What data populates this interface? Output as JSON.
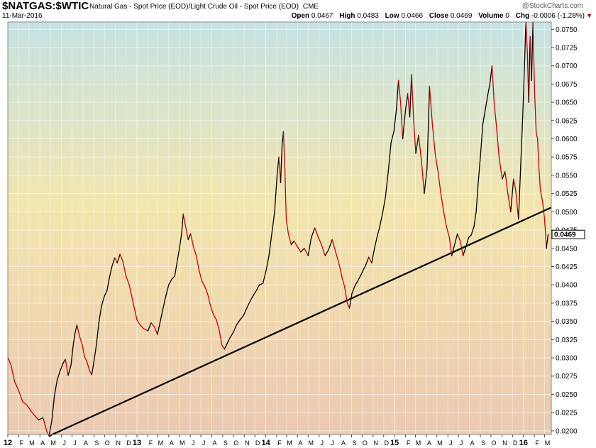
{
  "header": {
    "symbol": "$NATGAS:$WTIC",
    "description": "Natural Gas - Spot Price (EOD)/Light Crude Oil - Spot Price (EOD)",
    "exchange": "CME",
    "date": "11-Mar-2016",
    "credit": "@StockCharts.com",
    "open_label": "Open",
    "open": "0.0467",
    "high_label": "High",
    "high": "0.0483",
    "low_label": "Low",
    "low": "0.0466",
    "close_label": "Close",
    "close": "0.0469",
    "volume_label": "Volume",
    "volume": "0",
    "chg_label": "Chg",
    "chg": "-0.0006 (-1.28%)",
    "caret": "▼"
  },
  "colors": {
    "price_up": "#000000",
    "price_down": "#cc0000",
    "trendline": "#000000",
    "bg_top": "#c5e3e3",
    "bg_mid": "#f3e5ad",
    "bg_bottom": "#ecc9b1"
  },
  "chart_data": {
    "type": "line",
    "title": "$NATGAS:$WTIC",
    "y_axis_position": "right",
    "ylim": [
      0.0195,
      0.076
    ],
    "yticks": [
      "0.0200",
      "0.0225",
      "0.0250",
      "0.0275",
      "0.0300",
      "0.0325",
      "0.0350",
      "0.0375",
      "0.0400",
      "0.0425",
      "0.0450",
      "0.0475",
      "0.0500",
      "0.0525",
      "0.0550",
      "0.0575",
      "0.0600",
      "0.0625",
      "0.0650",
      "0.0675",
      "0.0700",
      "0.0725",
      "0.0750"
    ],
    "x_range": [
      "2012-01-01",
      "2016-03-20"
    ],
    "xticks": [
      {
        "date": "2012-01-01",
        "label": "12",
        "year": true
      },
      {
        "date": "2012-02-01",
        "label": "F"
      },
      {
        "date": "2012-03-01",
        "label": "M"
      },
      {
        "date": "2012-04-01",
        "label": "A"
      },
      {
        "date": "2012-05-01",
        "label": "M"
      },
      {
        "date": "2012-06-01",
        "label": "J"
      },
      {
        "date": "2012-07-01",
        "label": "J"
      },
      {
        "date": "2012-08-01",
        "label": "A"
      },
      {
        "date": "2012-09-01",
        "label": "S"
      },
      {
        "date": "2012-10-01",
        "label": "O"
      },
      {
        "date": "2012-11-01",
        "label": "N"
      },
      {
        "date": "2012-12-01",
        "label": "D"
      },
      {
        "date": "2013-01-01",
        "label": "13",
        "year": true
      },
      {
        "date": "2013-02-01",
        "label": "F"
      },
      {
        "date": "2013-03-01",
        "label": "M"
      },
      {
        "date": "2013-04-01",
        "label": "A"
      },
      {
        "date": "2013-05-01",
        "label": "M"
      },
      {
        "date": "2013-06-01",
        "label": "J"
      },
      {
        "date": "2013-07-01",
        "label": "J"
      },
      {
        "date": "2013-08-01",
        "label": "A"
      },
      {
        "date": "2013-09-01",
        "label": "S"
      },
      {
        "date": "2013-10-01",
        "label": "O"
      },
      {
        "date": "2013-11-01",
        "label": "N"
      },
      {
        "date": "2013-12-01",
        "label": "D"
      },
      {
        "date": "2014-01-01",
        "label": "14",
        "year": true
      },
      {
        "date": "2014-02-01",
        "label": "F"
      },
      {
        "date": "2014-03-01",
        "label": "M"
      },
      {
        "date": "2014-04-01",
        "label": "A"
      },
      {
        "date": "2014-05-01",
        "label": "M"
      },
      {
        "date": "2014-06-01",
        "label": "J"
      },
      {
        "date": "2014-07-01",
        "label": "J"
      },
      {
        "date": "2014-08-01",
        "label": "A"
      },
      {
        "date": "2014-09-01",
        "label": "S"
      },
      {
        "date": "2014-10-01",
        "label": "O"
      },
      {
        "date": "2014-11-01",
        "label": "N"
      },
      {
        "date": "2014-12-01",
        "label": "D"
      },
      {
        "date": "2015-01-01",
        "label": "15",
        "year": true
      },
      {
        "date": "2015-02-01",
        "label": "F"
      },
      {
        "date": "2015-03-01",
        "label": "M"
      },
      {
        "date": "2015-04-01",
        "label": "A"
      },
      {
        "date": "2015-05-01",
        "label": "M"
      },
      {
        "date": "2015-06-01",
        "label": "J"
      },
      {
        "date": "2015-07-01",
        "label": "J"
      },
      {
        "date": "2015-08-01",
        "label": "A"
      },
      {
        "date": "2015-09-01",
        "label": "S"
      },
      {
        "date": "2015-10-01",
        "label": "O"
      },
      {
        "date": "2015-11-01",
        "label": "N"
      },
      {
        "date": "2015-12-01",
        "label": "D"
      },
      {
        "date": "2016-01-01",
        "label": "16",
        "year": true
      },
      {
        "date": "2016-02-01",
        "label": "F"
      },
      {
        "date": "2016-03-01",
        "label": "M"
      }
    ],
    "grid": true,
    "last_value_label": "0.0469",
    "series": [
      {
        "values": [
          [
            "2012-01-01",
            0.0301
          ],
          [
            "2012-01-10",
            0.029
          ],
          [
            "2012-01-20",
            0.0268
          ],
          [
            "2012-02-01",
            0.0255
          ],
          [
            "2012-02-12",
            0.024
          ],
          [
            "2012-02-25",
            0.0235
          ],
          [
            "2012-03-05",
            0.0228
          ],
          [
            "2012-03-15",
            0.0222
          ],
          [
            "2012-03-28",
            0.0215
          ],
          [
            "2012-04-10",
            0.0218
          ],
          [
            "2012-04-20",
            0.02
          ],
          [
            "2012-04-27",
            0.0193
          ],
          [
            "2012-05-05",
            0.0215
          ],
          [
            "2012-05-12",
            0.0248
          ],
          [
            "2012-05-20",
            0.027
          ],
          [
            "2012-05-28",
            0.0282
          ],
          [
            "2012-06-05",
            0.0292
          ],
          [
            "2012-06-12",
            0.0298
          ],
          [
            "2012-06-20",
            0.0276
          ],
          [
            "2012-06-28",
            0.029
          ],
          [
            "2012-07-05",
            0.032
          ],
          [
            "2012-07-10",
            0.0335
          ],
          [
            "2012-07-15",
            0.0345
          ],
          [
            "2012-07-22",
            0.033
          ],
          [
            "2012-07-30",
            0.0318
          ],
          [
            "2012-08-05",
            0.0302
          ],
          [
            "2012-08-12",
            0.0295
          ],
          [
            "2012-08-20",
            0.0282
          ],
          [
            "2012-08-26",
            0.0277
          ],
          [
            "2012-09-01",
            0.0295
          ],
          [
            "2012-09-08",
            0.0318
          ],
          [
            "2012-09-15",
            0.0348
          ],
          [
            "2012-09-22",
            0.037
          ],
          [
            "2012-10-01",
            0.0385
          ],
          [
            "2012-10-08",
            0.0392
          ],
          [
            "2012-10-15",
            0.041
          ],
          [
            "2012-10-22",
            0.0425
          ],
          [
            "2012-10-30",
            0.0437
          ],
          [
            "2012-11-06",
            0.043
          ],
          [
            "2012-11-14",
            0.0442
          ],
          [
            "2012-11-22",
            0.0432
          ],
          [
            "2012-12-01",
            0.0412
          ],
          [
            "2012-12-10",
            0.04
          ],
          [
            "2012-12-20",
            0.0378
          ],
          [
            "2013-01-01",
            0.0352
          ],
          [
            "2013-01-10",
            0.0345
          ],
          [
            "2013-01-20",
            0.034
          ],
          [
            "2013-02-01",
            0.0337
          ],
          [
            "2013-02-10",
            0.0348
          ],
          [
            "2013-02-20",
            0.0342
          ],
          [
            "2013-02-28",
            0.0332
          ],
          [
            "2013-03-08",
            0.035
          ],
          [
            "2013-03-16",
            0.0368
          ],
          [
            "2013-03-24",
            0.0385
          ],
          [
            "2013-04-01",
            0.04
          ],
          [
            "2013-04-10",
            0.0408
          ],
          [
            "2013-04-18",
            0.0412
          ],
          [
            "2013-04-26",
            0.0435
          ],
          [
            "2013-05-02",
            0.0452
          ],
          [
            "2013-05-08",
            0.0472
          ],
          [
            "2013-05-12",
            0.0497
          ],
          [
            "2013-05-18",
            0.0482
          ],
          [
            "2013-05-26",
            0.0462
          ],
          [
            "2013-06-02",
            0.047
          ],
          [
            "2013-06-10",
            0.0452
          ],
          [
            "2013-06-18",
            0.044
          ],
          [
            "2013-06-26",
            0.042
          ],
          [
            "2013-07-04",
            0.0405
          ],
          [
            "2013-07-12",
            0.0398
          ],
          [
            "2013-07-20",
            0.0388
          ],
          [
            "2013-07-28",
            0.0372
          ],
          [
            "2013-08-05",
            0.036
          ],
          [
            "2013-08-14",
            0.0352
          ],
          [
            "2013-08-22",
            0.0338
          ],
          [
            "2013-08-30",
            0.0317
          ],
          [
            "2013-09-06",
            0.0312
          ],
          [
            "2013-09-14",
            0.032
          ],
          [
            "2013-09-22",
            0.0328
          ],
          [
            "2013-10-01",
            0.0335
          ],
          [
            "2013-10-10",
            0.0345
          ],
          [
            "2013-10-20",
            0.0352
          ],
          [
            "2013-10-30",
            0.0358
          ],
          [
            "2013-11-08",
            0.0368
          ],
          [
            "2013-11-18",
            0.0378
          ],
          [
            "2013-11-26",
            0.0385
          ],
          [
            "2013-12-05",
            0.0392
          ],
          [
            "2013-12-14",
            0.04
          ],
          [
            "2013-12-24",
            0.0402
          ],
          [
            "2014-01-02",
            0.042
          ],
          [
            "2014-01-10",
            0.044
          ],
          [
            "2014-01-18",
            0.047
          ],
          [
            "2014-01-26",
            0.05
          ],
          [
            "2014-02-02",
            0.055
          ],
          [
            "2014-02-07",
            0.0575
          ],
          [
            "2014-02-12",
            0.054
          ],
          [
            "2014-02-16",
            0.059
          ],
          [
            "2014-02-20",
            0.061
          ],
          [
            "2014-02-24",
            0.056
          ],
          [
            "2014-02-28",
            0.049
          ],
          [
            "2014-03-06",
            0.047
          ],
          [
            "2014-03-14",
            0.0455
          ],
          [
            "2014-03-22",
            0.046
          ],
          [
            "2014-04-01",
            0.0452
          ],
          [
            "2014-04-10",
            0.0445
          ],
          [
            "2014-04-20",
            0.045
          ],
          [
            "2014-05-01",
            0.044
          ],
          [
            "2014-05-10",
            0.0465
          ],
          [
            "2014-05-20",
            0.0478
          ],
          [
            "2014-05-30",
            0.0465
          ],
          [
            "2014-06-08",
            0.0455
          ],
          [
            "2014-06-18",
            0.044
          ],
          [
            "2014-06-28",
            0.0448
          ],
          [
            "2014-07-08",
            0.0462
          ],
          [
            "2014-07-18",
            0.0445
          ],
          [
            "2014-07-28",
            0.0428
          ],
          [
            "2014-08-05",
            0.041
          ],
          [
            "2014-08-12",
            0.0398
          ],
          [
            "2014-08-20",
            0.0375
          ],
          [
            "2014-08-26",
            0.0368
          ],
          [
            "2014-09-02",
            0.0388
          ],
          [
            "2014-09-10",
            0.0398
          ],
          [
            "2014-09-18",
            0.0405
          ],
          [
            "2014-09-26",
            0.0412
          ],
          [
            "2014-10-04",
            0.042
          ],
          [
            "2014-10-12",
            0.0428
          ],
          [
            "2014-10-20",
            0.0438
          ],
          [
            "2014-10-28",
            0.043
          ],
          [
            "2014-11-05",
            0.045
          ],
          [
            "2014-11-12",
            0.0465
          ],
          [
            "2014-11-20",
            0.048
          ],
          [
            "2014-11-28",
            0.0498
          ],
          [
            "2014-12-06",
            0.052
          ],
          [
            "2014-12-14",
            0.0555
          ],
          [
            "2014-12-22",
            0.0595
          ],
          [
            "2014-12-30",
            0.061
          ],
          [
            "2015-01-06",
            0.064
          ],
          [
            "2015-01-12",
            0.068
          ],
          [
            "2015-01-18",
            0.065
          ],
          [
            "2015-01-24",
            0.06
          ],
          [
            "2015-02-01",
            0.064
          ],
          [
            "2015-02-07",
            0.0662
          ],
          [
            "2015-02-13",
            0.063
          ],
          [
            "2015-02-18",
            0.0688
          ],
          [
            "2015-02-24",
            0.0625
          ],
          [
            "2015-03-02",
            0.058
          ],
          [
            "2015-03-10",
            0.0605
          ],
          [
            "2015-03-18",
            0.057
          ],
          [
            "2015-03-26",
            0.0525
          ],
          [
            "2015-04-03",
            0.056
          ],
          [
            "2015-04-10",
            0.0672
          ],
          [
            "2015-04-18",
            0.062
          ],
          [
            "2015-04-26",
            0.058
          ],
          [
            "2015-05-04",
            0.0555
          ],
          [
            "2015-05-12",
            0.0525
          ],
          [
            "2015-05-20",
            0.05
          ],
          [
            "2015-05-28",
            0.048
          ],
          [
            "2015-06-05",
            0.0465
          ],
          [
            "2015-06-12",
            0.044
          ],
          [
            "2015-06-20",
            0.0455
          ],
          [
            "2015-06-28",
            0.047
          ],
          [
            "2015-07-06",
            0.046
          ],
          [
            "2015-07-14",
            0.044
          ],
          [
            "2015-07-22",
            0.0452
          ],
          [
            "2015-07-30",
            0.0465
          ],
          [
            "2015-08-06",
            0.0468
          ],
          [
            "2015-08-14",
            0.048
          ],
          [
            "2015-08-20",
            0.05
          ],
          [
            "2015-08-26",
            0.054
          ],
          [
            "2015-09-01",
            0.0575
          ],
          [
            "2015-09-08",
            0.062
          ],
          [
            "2015-09-15",
            0.064
          ],
          [
            "2015-09-22",
            0.066
          ],
          [
            "2015-09-28",
            0.0675
          ],
          [
            "2015-10-04",
            0.07
          ],
          [
            "2015-10-10",
            0.065
          ],
          [
            "2015-10-16",
            0.062
          ],
          [
            "2015-10-24",
            0.0575
          ],
          [
            "2015-11-02",
            0.0545
          ],
          [
            "2015-11-10",
            0.0555
          ],
          [
            "2015-11-18",
            0.0525
          ],
          [
            "2015-11-26",
            0.05
          ],
          [
            "2015-12-04",
            0.0545
          ],
          [
            "2015-12-10",
            0.053
          ],
          [
            "2015-12-18",
            0.049
          ],
          [
            "2015-12-24",
            0.056
          ],
          [
            "2015-12-30",
            0.063
          ],
          [
            "2016-01-04",
            0.07
          ],
          [
            "2016-01-08",
            0.076
          ],
          [
            "2016-01-12",
            0.072
          ],
          [
            "2016-01-16",
            0.065
          ],
          [
            "2016-01-20",
            0.074
          ],
          [
            "2016-01-24",
            0.068
          ],
          [
            "2016-01-28",
            0.076
          ],
          [
            "2016-02-02",
            0.066
          ],
          [
            "2016-02-06",
            0.061
          ],
          [
            "2016-02-10",
            0.06
          ],
          [
            "2016-02-14",
            0.056
          ],
          [
            "2016-02-18",
            0.053
          ],
          [
            "2016-02-24",
            0.0515
          ],
          [
            "2016-03-01",
            0.049
          ],
          [
            "2016-03-06",
            0.045
          ],
          [
            "2016-03-11",
            0.0469
          ]
        ]
      }
    ],
    "trendline": {
      "from": [
        "2012-04-27",
        0.0193
      ],
      "to": [
        "2016-03-20",
        0.0506
      ]
    }
  }
}
